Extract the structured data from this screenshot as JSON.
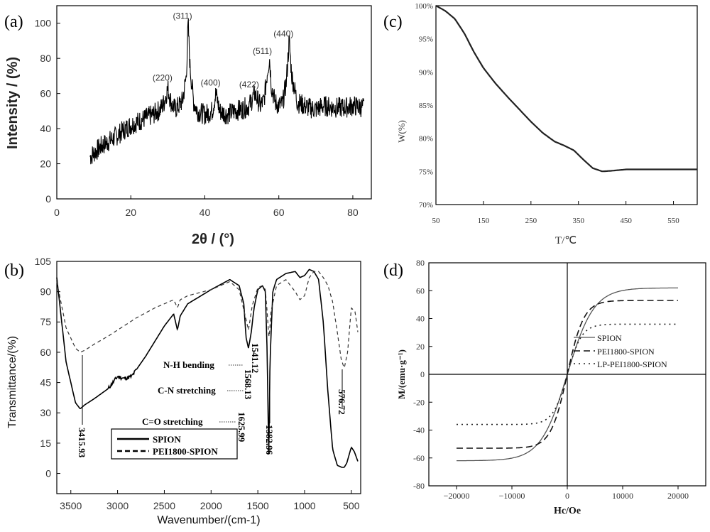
{
  "chart_data": [
    {
      "panel": "(a)",
      "type": "line",
      "xlabel": "2θ / (°)",
      "ylabel": "Intensity / (%)",
      "xlim": [
        0,
        85
      ],
      "ylim": [
        0,
        110
      ],
      "xticks": [
        "0",
        "20",
        "40",
        "60",
        "80"
      ],
      "yticks": [
        "0",
        "20",
        "40",
        "60",
        "80",
        "100"
      ],
      "peaks": [
        {
          "label": "(220)",
          "x": 30.1,
          "y": 65
        },
        {
          "label": "(311)",
          "x": 35.5,
          "y": 100
        },
        {
          "label": "(400)",
          "x": 43.1,
          "y": 62
        },
        {
          "label": "(422)",
          "x": 53.5,
          "y": 61
        },
        {
          "label": "(511)",
          "x": 57.1,
          "y": 80
        },
        {
          "label": "(440)",
          "x": 62.8,
          "y": 90
        }
      ],
      "x": [
        9,
        12,
        15,
        18,
        20,
        22,
        24,
        26,
        28,
        29,
        30,
        31,
        32,
        33,
        34,
        35,
        35.5,
        36,
        37,
        38,
        40,
        42,
        43,
        44,
        46,
        48,
        50,
        52,
        53.5,
        55,
        56,
        57,
        57.5,
        58,
        59,
        60,
        61,
        62,
        62.8,
        63.5,
        65,
        68,
        70,
        72,
        75,
        78,
        80,
        83
      ],
      "values": [
        24,
        30,
        34,
        39,
        42,
        44,
        46,
        48,
        51,
        55,
        63,
        54,
        51,
        53,
        56,
        70,
        100,
        75,
        55,
        50,
        48,
        50,
        60,
        50,
        48,
        50,
        51,
        53,
        60,
        53,
        56,
        74,
        80,
        64,
        55,
        53,
        54,
        66,
        90,
        70,
        55,
        52,
        51,
        53,
        52,
        52,
        53,
        52
      ]
    },
    {
      "panel": "(c)",
      "type": "line",
      "xlabel": "T/℃",
      "ylabel": "W(%)",
      "xlim": [
        50,
        600
      ],
      "ylim": [
        70,
        100
      ],
      "xticks": [
        "50",
        "150",
        "250",
        "350",
        "450",
        "550"
      ],
      "yticks": [
        "70%",
        "75%",
        "80%",
        "85%",
        "90%",
        "95%",
        "100%"
      ],
      "x": [
        50,
        70,
        90,
        110,
        130,
        150,
        175,
        200,
        225,
        250,
        275,
        300,
        320,
        340,
        360,
        380,
        400,
        420,
        450,
        500,
        550,
        600
      ],
      "values": [
        100,
        99.2,
        98,
        95.8,
        93,
        90.6,
        88.3,
        86.3,
        84.4,
        82.5,
        80.8,
        79.5,
        78.9,
        78.2,
        76.8,
        75.5,
        75.0,
        75.1,
        75.3,
        75.3,
        75.3,
        75.3
      ]
    },
    {
      "panel": "(b)",
      "type": "line",
      "xlabel": "Wavenumber/(cm-1)",
      "ylabel": "Transmittance/(%)",
      "xlim": [
        3650,
        400
      ],
      "ylim": [
        -10,
        105
      ],
      "xticks": [
        "3500",
        "3000",
        "2500",
        "2000",
        "1500",
        "1000",
        "500"
      ],
      "yticks": [
        "0",
        "15",
        "30",
        "45",
        "60",
        "75",
        "90",
        "105"
      ],
      "series": [
        {
          "name": "SPION",
          "dash": "solid",
          "x": [
            3650,
            3550,
            3450,
            3400,
            3350,
            3250,
            3100,
            3000,
            2930,
            2850,
            2700,
            2500,
            2400,
            2360,
            2330,
            2250,
            2000,
            1800,
            1700,
            1650,
            1625,
            1600,
            1570,
            1540,
            1500,
            1450,
            1420,
            1400,
            1383,
            1370,
            1340,
            1300,
            1200,
            1100,
            1050,
            1000,
            950,
            900,
            850,
            800,
            750,
            700,
            650,
            600,
            577,
            550,
            500,
            470,
            430
          ],
          "values": [
            97,
            55,
            35,
            32,
            34,
            37,
            42,
            48,
            47,
            48,
            58,
            73,
            79,
            71,
            78,
            84,
            91,
            96,
            93,
            84,
            67,
            62,
            70,
            82,
            91,
            93,
            90,
            60,
            8,
            55,
            90,
            96,
            99,
            100,
            97,
            98,
            101,
            100,
            96,
            75,
            40,
            12,
            4,
            3,
            3,
            5,
            13,
            11,
            6
          ]
        },
        {
          "name": "PEI1800-SPION",
          "dash": "dashed",
          "x": [
            3650,
            3550,
            3450,
            3400,
            3350,
            3250,
            3100,
            3000,
            2900,
            2800,
            2600,
            2500,
            2400,
            2360,
            2330,
            2250,
            2000,
            1800,
            1700,
            1640,
            1600,
            1560,
            1500,
            1450,
            1420,
            1400,
            1380,
            1360,
            1300,
            1200,
            1100,
            1050,
            1000,
            950,
            900,
            850,
            800,
            750,
            700,
            650,
            610,
            576,
            540,
            500,
            460,
            430
          ],
          "values": [
            95,
            72,
            62,
            60,
            61,
            64,
            68,
            71,
            74,
            77,
            82,
            84,
            86,
            82,
            86,
            88,
            91,
            95,
            91,
            79,
            71,
            83,
            92,
            93,
            91,
            80,
            66,
            80,
            93,
            96,
            90,
            86,
            88,
            97,
            100,
            100,
            97,
            93,
            85,
            70,
            57,
            52,
            60,
            82,
            80,
            70
          ]
        }
      ],
      "annotations": [
        "3415.93",
        "N-H bending",
        "1541.12",
        "C-N stretching",
        "1568.13",
        "C=O stretching",
        "1625.99",
        "1382.96",
        "576.72"
      ],
      "legend": {
        "placement": "bottom-center",
        "entries": [
          "SPION",
          "PEI1800-SPION"
        ]
      }
    },
    {
      "panel": "(d)",
      "type": "line",
      "xlabel": "Hc/Oe",
      "ylabel": "M/(emu·g⁻¹)",
      "xlim": [
        -25000,
        25000
      ],
      "ylim": [
        -80,
        80
      ],
      "xticks": [
        "-20000",
        "-10000",
        "0",
        "10000",
        "20000"
      ],
      "yticks": [
        "-80",
        "-60",
        "-40",
        "-20",
        "0",
        "20",
        "40",
        "60",
        "80"
      ],
      "series": [
        {
          "name": "SPION",
          "dash": "solid",
          "Ms": 62
        },
        {
          "name": "PEI1800-SPION",
          "dash": "dashed",
          "Ms": 53
        },
        {
          "name": "LP-PEI1800-SPION",
          "dash": "dotted",
          "Ms": 36
        }
      ],
      "legend": {
        "placement": "right",
        "entries": [
          "SPION",
          "PEI1800-SPION",
          "LP-PEI1800-SPION"
        ]
      }
    }
  ]
}
